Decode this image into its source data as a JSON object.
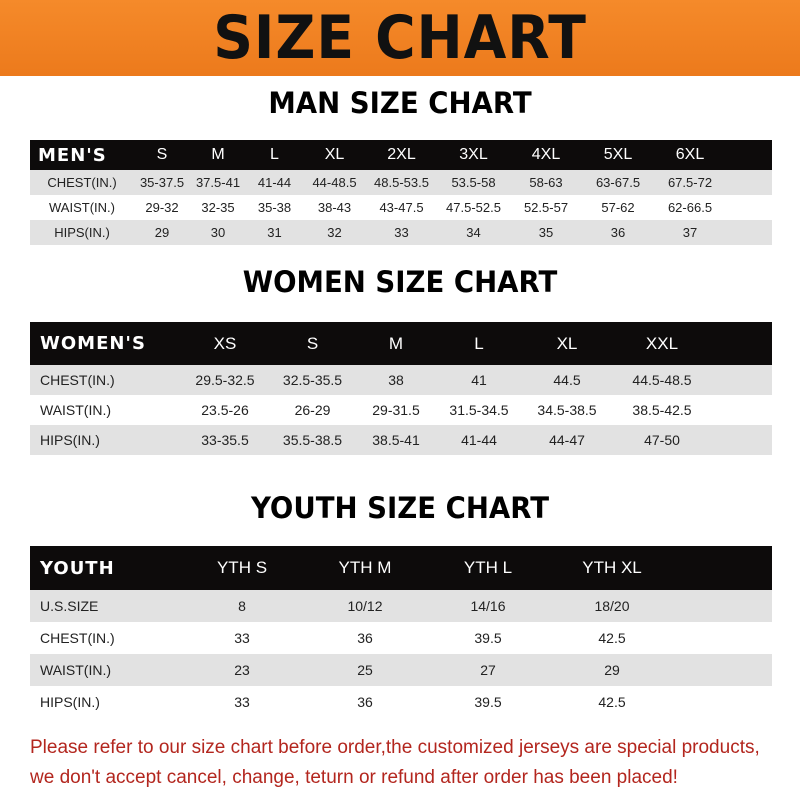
{
  "banner_title": "SIZE CHART",
  "colors": {
    "banner": "#f07f22",
    "header_row": "#0d0b0b",
    "stripe": "#e2e2e2",
    "note": "#b3261e"
  },
  "men": {
    "title": "MAN SIZE CHART",
    "header": [
      "MEN'S",
      "S",
      "M",
      "L",
      "XL",
      "2XL",
      "3XL",
      "4XL",
      "5XL",
      "6XL"
    ],
    "rows": [
      [
        "CHEST(IN.)",
        "35-37.5",
        "37.5-41",
        "41-44",
        "44-48.5",
        "48.5-53.5",
        "53.5-58",
        "58-63",
        "63-67.5",
        "67.5-72"
      ],
      [
        "WAIST(IN.)",
        "29-32",
        "32-35",
        "35-38",
        "38-43",
        "43-47.5",
        "47.5-52.5",
        "52.5-57",
        "57-62",
        "62-66.5"
      ],
      [
        "HIPS(IN.)",
        "29",
        "30",
        "31",
        "32",
        "33",
        "34",
        "35",
        "36",
        "37"
      ]
    ]
  },
  "women": {
    "title": "WOMEN SIZE CHART",
    "header": [
      "WOMEN'S",
      "XS",
      "S",
      "M",
      "L",
      "XL",
      "XXL"
    ],
    "rows": [
      [
        "CHEST(IN.)",
        "29.5-32.5",
        "32.5-35.5",
        "38",
        "41",
        "44.5",
        "44.5-48.5"
      ],
      [
        "WAIST(IN.)",
        "23.5-26",
        "26-29",
        "29-31.5",
        "31.5-34.5",
        "34.5-38.5",
        "38.5-42.5"
      ],
      [
        "HIPS(IN.)",
        "33-35.5",
        "35.5-38.5",
        "38.5-41",
        "41-44",
        "44-47",
        "47-50"
      ]
    ]
  },
  "youth": {
    "title": "YOUTH SIZE CHART",
    "header": [
      "YOUTH",
      "YTH S",
      "YTH M",
      "YTH L",
      "YTH XL"
    ],
    "rows": [
      [
        "U.S.SIZE",
        "8",
        "10/12",
        "14/16",
        "18/20"
      ],
      [
        "CHEST(IN.)",
        "33",
        "36",
        "39.5",
        "42.5"
      ],
      [
        "WAIST(IN.)",
        "23",
        "25",
        "27",
        "29"
      ],
      [
        "HIPS(IN.)",
        "33",
        "36",
        "39.5",
        "42.5"
      ]
    ]
  },
  "note": {
    "line1": "Please refer to our size chart before order,the customized jerseys are special products,",
    "line2": "we don't accept cancel, change, teturn or refund after order has been placed!"
  }
}
